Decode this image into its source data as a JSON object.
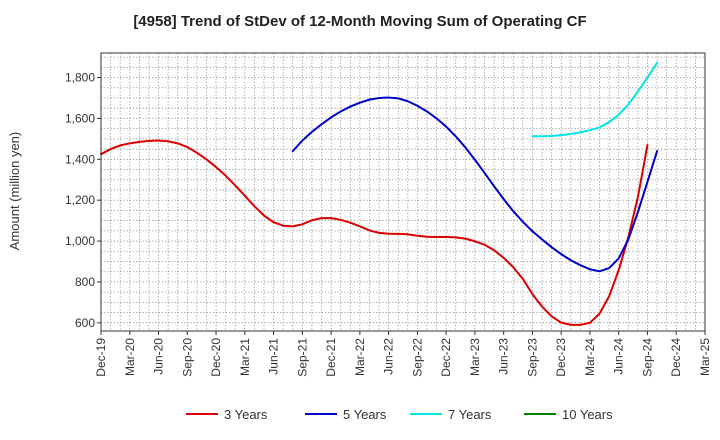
{
  "chart_data": {
    "type": "line",
    "title": "[4958]  Trend of StDev of 12-Month Moving Sum of Operating CF",
    "ylabel": "Amount (million yen)",
    "xlabel": "",
    "ylim": [
      560,
      1920
    ],
    "yticks": [
      600,
      800,
      1000,
      1200,
      1400,
      1600,
      1800
    ],
    "ytick_labels": [
      "600",
      "800",
      "1,000",
      "1,200",
      "1,400",
      "1,600",
      "1,800"
    ],
    "x_range": [
      "2019-12",
      "2025-03"
    ],
    "xtick_labels": [
      "Dec-19",
      "Mar-20",
      "Jun-20",
      "Sep-20",
      "Dec-20",
      "Mar-21",
      "Jun-21",
      "Sep-21",
      "Dec-21",
      "Mar-22",
      "Jun-22",
      "Sep-22",
      "Dec-22",
      "Mar-23",
      "Jun-23",
      "Sep-23",
      "Dec-23",
      "Mar-24",
      "Jun-24",
      "Sep-24",
      "Dec-24",
      "Mar-25"
    ],
    "grid": true,
    "legend_position": "bottom",
    "series": [
      {
        "name": "3 Years",
        "color": "#dd0000",
        "points": [
          [
            "2019-12",
            1425
          ],
          [
            "2020-01",
            1450
          ],
          [
            "2020-02",
            1468
          ],
          [
            "2020-03",
            1478
          ],
          [
            "2020-04",
            1485
          ],
          [
            "2020-05",
            1490
          ],
          [
            "2020-06",
            1492
          ],
          [
            "2020-07",
            1488
          ],
          [
            "2020-08",
            1478
          ],
          [
            "2020-09",
            1460
          ],
          [
            "2020-10",
            1432
          ],
          [
            "2020-11",
            1400
          ],
          [
            "2020-12",
            1362
          ],
          [
            "2021-01",
            1320
          ],
          [
            "2021-02",
            1272
          ],
          [
            "2021-03",
            1222
          ],
          [
            "2021-04",
            1170
          ],
          [
            "2021-05",
            1125
          ],
          [
            "2021-06",
            1092
          ],
          [
            "2021-07",
            1075
          ],
          [
            "2021-08",
            1072
          ],
          [
            "2021-09",
            1082
          ],
          [
            "2021-10",
            1102
          ],
          [
            "2021-11",
            1112
          ],
          [
            "2021-12",
            1112
          ],
          [
            "2022-01",
            1104
          ],
          [
            "2022-02",
            1090
          ],
          [
            "2022-03",
            1072
          ],
          [
            "2022-04",
            1052
          ],
          [
            "2022-05",
            1040
          ],
          [
            "2022-06",
            1036
          ],
          [
            "2022-07",
            1035
          ],
          [
            "2022-08",
            1033
          ],
          [
            "2022-09",
            1026
          ],
          [
            "2022-10",
            1021
          ],
          [
            "2022-11",
            1020
          ],
          [
            "2022-12",
            1020
          ],
          [
            "2023-01",
            1018
          ],
          [
            "2023-02",
            1012
          ],
          [
            "2023-03",
            999
          ],
          [
            "2023-04",
            982
          ],
          [
            "2023-05",
            955
          ],
          [
            "2023-06",
            918
          ],
          [
            "2023-07",
            872
          ],
          [
            "2023-08",
            815
          ],
          [
            "2023-09",
            740
          ],
          [
            "2023-10",
            680
          ],
          [
            "2023-11",
            632
          ],
          [
            "2023-12",
            601
          ],
          [
            "2024-01",
            590
          ],
          [
            "2024-02",
            590
          ],
          [
            "2024-03",
            600
          ],
          [
            "2024-04",
            645
          ],
          [
            "2024-05",
            730
          ],
          [
            "2024-06",
            858
          ],
          [
            "2024-07",
            1018
          ],
          [
            "2024-08",
            1215
          ],
          [
            "2024-09",
            1470
          ]
        ]
      },
      {
        "name": "5 Years",
        "color": "#0000cc",
        "points": [
          [
            "2021-08",
            1440
          ],
          [
            "2021-09",
            1492
          ],
          [
            "2021-10",
            1534
          ],
          [
            "2021-11",
            1571
          ],
          [
            "2021-12",
            1605
          ],
          [
            "2022-01",
            1634
          ],
          [
            "2022-02",
            1658
          ],
          [
            "2022-03",
            1677
          ],
          [
            "2022-04",
            1692
          ],
          [
            "2022-05",
            1700
          ],
          [
            "2022-06",
            1702
          ],
          [
            "2022-07",
            1698
          ],
          [
            "2022-08",
            1684
          ],
          [
            "2022-09",
            1662
          ],
          [
            "2022-10",
            1634
          ],
          [
            "2022-11",
            1600
          ],
          [
            "2022-12",
            1560
          ],
          [
            "2023-01",
            1512
          ],
          [
            "2023-02",
            1458
          ],
          [
            "2023-03",
            1398
          ],
          [
            "2023-04",
            1334
          ],
          [
            "2023-05",
            1268
          ],
          [
            "2023-06",
            1205
          ],
          [
            "2023-07",
            1146
          ],
          [
            "2023-08",
            1094
          ],
          [
            "2023-09",
            1048
          ],
          [
            "2023-10",
            1008
          ],
          [
            "2023-11",
            970
          ],
          [
            "2023-12",
            936
          ],
          [
            "2024-01",
            906
          ],
          [
            "2024-02",
            882
          ],
          [
            "2024-03",
            862
          ],
          [
            "2024-04",
            852
          ],
          [
            "2024-05",
            868
          ],
          [
            "2024-06",
            915
          ],
          [
            "2024-07",
            1008
          ],
          [
            "2024-08",
            1142
          ],
          [
            "2024-09",
            1290
          ],
          [
            "2024-10",
            1440
          ]
        ]
      },
      {
        "name": "7 Years",
        "color": "#00e5e5",
        "points": [
          [
            "2023-09",
            1513
          ],
          [
            "2023-10",
            1513
          ],
          [
            "2023-11",
            1514
          ],
          [
            "2023-12",
            1518
          ],
          [
            "2024-01",
            1524
          ],
          [
            "2024-02",
            1532
          ],
          [
            "2024-03",
            1542
          ],
          [
            "2024-04",
            1556
          ],
          [
            "2024-05",
            1582
          ],
          [
            "2024-06",
            1618
          ],
          [
            "2024-07",
            1668
          ],
          [
            "2024-08",
            1732
          ],
          [
            "2024-09",
            1800
          ],
          [
            "2024-10",
            1872
          ]
        ]
      },
      {
        "name": "10 Years",
        "color": "#008000",
        "points": []
      }
    ]
  }
}
